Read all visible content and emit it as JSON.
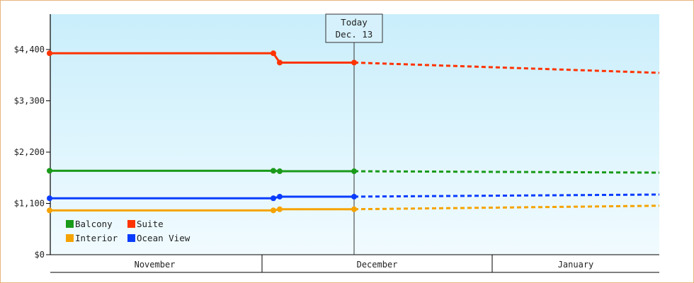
{
  "chart_data": {
    "type": "line",
    "y_ticks": [
      "$0",
      "$1,100",
      "$2,200",
      "$3,300",
      "$4,400"
    ],
    "ylim": [
      0,
      5500
    ],
    "months": [
      "November",
      "December",
      "January"
    ],
    "today_marker": {
      "line1": "Today",
      "line2": "Dec. 13"
    },
    "legend_placement": "bottom-left",
    "grid": false,
    "series": [
      {
        "name": "Balcony",
        "color": "#1a9a1a",
        "actual": [
          [
            "Nov 1",
            1800
          ],
          [
            "Nov 30",
            1800
          ],
          [
            "Dec 1",
            1790
          ],
          [
            "Dec 13",
            1790
          ]
        ],
        "forecast": [
          [
            "Dec 13",
            1790
          ],
          [
            "Jan 31",
            1760
          ]
        ]
      },
      {
        "name": "Suite",
        "color": "#ff3300",
        "actual": [
          [
            "Nov 1",
            4320
          ],
          [
            "Nov 30",
            4320
          ],
          [
            "Dec 1",
            4120
          ],
          [
            "Dec 13",
            4120
          ]
        ],
        "forecast": [
          [
            "Dec 13",
            4120
          ],
          [
            "Jan 31",
            3900
          ]
        ]
      },
      {
        "name": "Interior",
        "color": "#f5a300",
        "actual": [
          [
            "Nov 1",
            950
          ],
          [
            "Nov 30",
            950
          ],
          [
            "Dec 1",
            975
          ],
          [
            "Dec 13",
            975
          ]
        ],
        "forecast": [
          [
            "Dec 13",
            975
          ],
          [
            "Jan 31",
            1050
          ]
        ]
      },
      {
        "name": "Ocean View",
        "color": "#0a3cff",
        "actual": [
          [
            "Nov 1",
            1210
          ],
          [
            "Nov 30",
            1210
          ],
          [
            "Dec 1",
            1245
          ],
          [
            "Dec 13",
            1245
          ]
        ],
        "forecast": [
          [
            "Dec 13",
            1245
          ],
          [
            "Jan 31",
            1290
          ]
        ]
      }
    ]
  }
}
